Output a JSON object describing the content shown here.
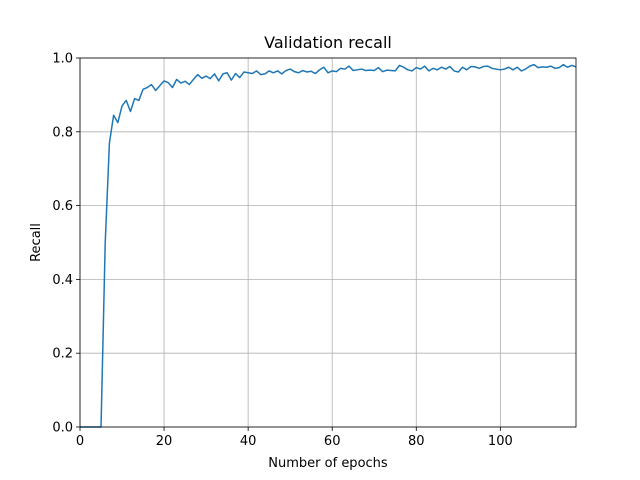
{
  "chart_data": {
    "type": "line",
    "title": "Validation recall",
    "xlabel": "Number of epochs",
    "ylabel": "Recall",
    "xlim": [
      0,
      118
    ],
    "ylim": [
      0.0,
      1.0
    ],
    "xticks": [
      0,
      20,
      40,
      60,
      80,
      100
    ],
    "xtick_labels": [
      "0",
      "20",
      "40",
      "60",
      "80",
      "100"
    ],
    "yticks": [
      0.0,
      0.2,
      0.4,
      0.6,
      0.8,
      1.0
    ],
    "ytick_labels": [
      "0.0",
      "0.2",
      "0.4",
      "0.6",
      "0.8",
      "1.0"
    ],
    "grid": true,
    "series": [
      {
        "color": "#1f77b4",
        "x": [
          0,
          1,
          2,
          3,
          4,
          5,
          6,
          7,
          8,
          9,
          10,
          11,
          12,
          13,
          14,
          15,
          16,
          17,
          18,
          19,
          20,
          21,
          22,
          23,
          24,
          25,
          26,
          27,
          28,
          29,
          30,
          31,
          32,
          33,
          34,
          35,
          36,
          37,
          38,
          39,
          40,
          41,
          42,
          43,
          44,
          45,
          46,
          47,
          48,
          49,
          50,
          51,
          52,
          53,
          54,
          55,
          56,
          57,
          58,
          59,
          60,
          61,
          62,
          63,
          64,
          65,
          66,
          67,
          68,
          69,
          70,
          71,
          72,
          73,
          74,
          75,
          76,
          77,
          78,
          79,
          80,
          81,
          82,
          83,
          84,
          85,
          86,
          87,
          88,
          89,
          90,
          91,
          92,
          93,
          94,
          95,
          96,
          97,
          98,
          99,
          100,
          101,
          102,
          103,
          104,
          105,
          106,
          107,
          108,
          109,
          110,
          111,
          112,
          113,
          114,
          115,
          116,
          117,
          118
        ],
        "y": [
          0.0,
          0.0,
          0.0,
          0.0,
          0.0,
          0.0,
          0.5,
          0.77,
          0.845,
          0.825,
          0.87,
          0.885,
          0.855,
          0.89,
          0.885,
          0.915,
          0.92,
          0.928,
          0.912,
          0.925,
          0.938,
          0.933,
          0.92,
          0.942,
          0.932,
          0.937,
          0.928,
          0.942,
          0.955,
          0.945,
          0.951,
          0.944,
          0.957,
          0.938,
          0.957,
          0.96,
          0.94,
          0.958,
          0.947,
          0.962,
          0.96,
          0.958,
          0.965,
          0.955,
          0.957,
          0.965,
          0.96,
          0.965,
          0.957,
          0.966,
          0.97,
          0.963,
          0.96,
          0.966,
          0.962,
          0.964,
          0.958,
          0.968,
          0.975,
          0.96,
          0.965,
          0.963,
          0.972,
          0.97,
          0.978,
          0.966,
          0.968,
          0.97,
          0.966,
          0.967,
          0.966,
          0.974,
          0.963,
          0.967,
          0.966,
          0.965,
          0.98,
          0.975,
          0.968,
          0.965,
          0.974,
          0.97,
          0.978,
          0.965,
          0.972,
          0.968,
          0.975,
          0.97,
          0.977,
          0.965,
          0.962,
          0.975,
          0.968,
          0.977,
          0.976,
          0.972,
          0.977,
          0.978,
          0.972,
          0.97,
          0.968,
          0.97,
          0.975,
          0.968,
          0.975,
          0.965,
          0.97,
          0.978,
          0.982,
          0.974,
          0.976,
          0.975,
          0.978,
          0.972,
          0.974,
          0.982,
          0.975,
          0.98,
          0.976
        ]
      }
    ]
  }
}
